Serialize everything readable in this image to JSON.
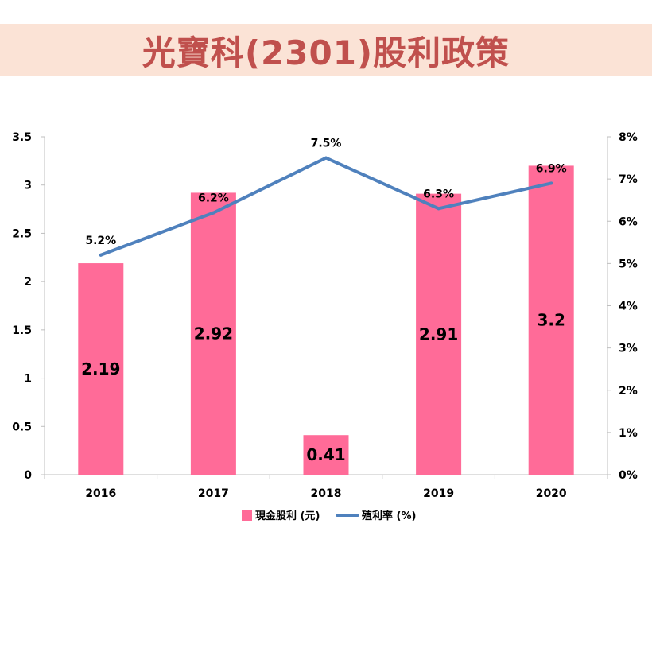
{
  "title": "光寶科(2301)股利政策",
  "colors": {
    "title_bg": "#fbe3d6",
    "title_text": "#c0504d",
    "bar": "#ff6b98",
    "line": "#4f81bd",
    "axis": "#bfbfbf"
  },
  "chart_data": {
    "type": "bar",
    "categories": [
      "2016",
      "2017",
      "2018",
      "2019",
      "2020"
    ],
    "series": [
      {
        "name": "現金股利 (元)",
        "type": "bar",
        "axis": "left",
        "values": [
          2.19,
          2.92,
          0.41,
          2.91,
          3.2
        ],
        "labels": [
          "2.19",
          "2.92",
          "0.41",
          "2.91",
          "3.2"
        ]
      },
      {
        "name": "殖利率 (%)",
        "type": "line",
        "axis": "right",
        "values": [
          5.2,
          6.2,
          7.5,
          6.3,
          6.9
        ],
        "labels": [
          "5.2%",
          "6.2%",
          "7.5%",
          "6.3%",
          "6.9%"
        ]
      }
    ],
    "y_left": {
      "ylim": [
        0,
        3.5
      ],
      "ticks": [
        "0",
        "0.5",
        "1",
        "1.5",
        "2",
        "2.5",
        "3",
        "3.5"
      ]
    },
    "y_right": {
      "ylim": [
        0,
        8
      ],
      "ticks": [
        "0%",
        "1%",
        "2%",
        "3%",
        "4%",
        "5%",
        "6%",
        "7%",
        "8%"
      ]
    },
    "grid": false,
    "legend": "bottom"
  }
}
